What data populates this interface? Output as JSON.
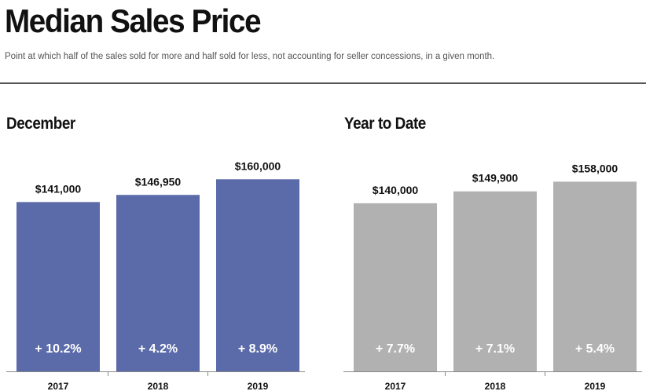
{
  "title": "Median Sales Price",
  "subtitle": "Point at which half of the sales sold for more and half sold for less, not accounting for seller concessions, in a given month.",
  "chart_data": [
    {
      "type": "bar",
      "title": "December",
      "categories": [
        "2017",
        "2018",
        "2019"
      ],
      "values": [
        141000,
        146950,
        160000
      ],
      "value_labels": [
        "$141,000",
        "$146,950",
        "$160,000"
      ],
      "change_labels": [
        "+ 10.2%",
        "+ 4.2%",
        "+ 8.9%"
      ],
      "color": "#5b6aa8",
      "ylim": [
        0,
        170000
      ]
    },
    {
      "type": "bar",
      "title": "Year to Date",
      "categories": [
        "2017",
        "2018",
        "2019"
      ],
      "values": [
        140000,
        149900,
        158000
      ],
      "value_labels": [
        "$140,000",
        "$149,900",
        "$158,000"
      ],
      "change_labels": [
        "+ 7.7%",
        "+ 7.1%",
        "+ 5.4%"
      ],
      "color": "#b1b1b1",
      "ylim": [
        0,
        170000
      ]
    }
  ]
}
